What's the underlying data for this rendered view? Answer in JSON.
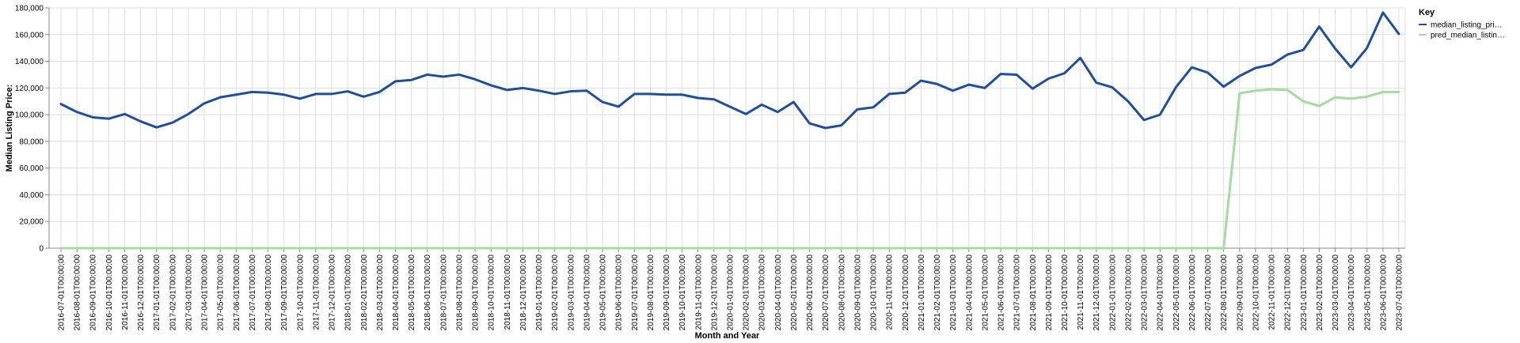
{
  "chart_data": {
    "type": "line",
    "xlabel": "Month and Year",
    "ylabel": "Median Listing Price:",
    "ylim": [
      0,
      180000
    ],
    "y_ticks": [
      "0",
      "20,000",
      "40,000",
      "60,000",
      "80,000",
      "100,000",
      "120,000",
      "140,000",
      "160,000",
      "180,000"
    ],
    "grid": true,
    "legend": {
      "title": "Key",
      "position": "top-right"
    },
    "x": [
      "2016-07-01T00:00:00",
      "2016-08-01T00:00:00",
      "2016-09-01T00:00:00",
      "2016-10-01T00:00:00",
      "2016-11-01T00:00:00",
      "2016-12-01T00:00:00",
      "2017-01-01T00:00:00",
      "2017-02-01T00:00:00",
      "2017-03-01T00:00:00",
      "2017-04-01T00:00:00",
      "2017-05-01T00:00:00",
      "2017-06-01T00:00:00",
      "2017-07-01T00:00:00",
      "2017-08-01T00:00:00",
      "2017-09-01T00:00:00",
      "2017-10-01T00:00:00",
      "2017-11-01T00:00:00",
      "2017-12-01T00:00:00",
      "2018-01-01T00:00:00",
      "2018-02-01T00:00:00",
      "2018-03-01T00:00:00",
      "2018-04-01T00:00:00",
      "2018-05-01T00:00:00",
      "2018-06-01T00:00:00",
      "2018-07-01T00:00:00",
      "2018-08-01T00:00:00",
      "2018-09-01T00:00:00",
      "2018-10-01T00:00:00",
      "2018-11-01T00:00:00",
      "2018-12-01T00:00:00",
      "2019-01-01T00:00:00",
      "2019-02-01T00:00:00",
      "2019-03-01T00:00:00",
      "2019-04-01T00:00:00",
      "2019-05-01T00:00:00",
      "2019-06-01T00:00:00",
      "2019-07-01T00:00:00",
      "2019-08-01T00:00:00",
      "2019-09-01T00:00:00",
      "2019-10-01T00:00:00",
      "2019-11-01T00:00:00",
      "2019-12-01T00:00:00",
      "2020-01-01T00:00:00",
      "2020-02-01T00:00:00",
      "2020-03-01T00:00:00",
      "2020-04-01T00:00:00",
      "2020-05-01T00:00:00",
      "2020-06-01T00:00:00",
      "2020-07-01T00:00:00",
      "2020-08-01T00:00:00",
      "2020-09-01T00:00:00",
      "2020-10-01T00:00:00",
      "2020-11-01T00:00:00",
      "2020-12-01T00:00:00",
      "2021-01-01T00:00:00",
      "2021-02-01T00:00:00",
      "2021-03-01T00:00:00",
      "2021-04-01T00:00:00",
      "2021-05-01T00:00:00",
      "2021-06-01T00:00:00",
      "2021-07-01T00:00:00",
      "2021-08-01T00:00:00",
      "2021-09-01T00:00:00",
      "2021-10-01T00:00:00",
      "2021-11-01T00:00:00",
      "2021-12-01T00:00:00",
      "2022-01-01T00:00:00",
      "2022-02-01T00:00:00",
      "2022-03-01T00:00:00",
      "2022-04-01T00:00:00",
      "2022-05-01T00:00:00",
      "2022-06-01T00:00:00",
      "2022-07-01T00:00:00",
      "2022-08-01T00:00:00",
      "2022-09-01T00:00:00",
      "2022-10-01T00:00:00",
      "2022-11-01T00:00:00",
      "2022-12-01T00:00:00",
      "2023-01-01T00:00:00",
      "2023-02-01T00:00:00",
      "2023-03-01T00:00:00",
      "2023-04-01T00:00:00",
      "2023-05-01T00:00:00",
      "2023-06-01T00:00:00",
      "2023-07-01T00:00:00"
    ],
    "series": [
      {
        "name": "median_listing_pri…",
        "color": "#1f4e9c",
        "values": [
          108000,
          102000,
          98000,
          97000,
          100500,
          95000,
          90500,
          94000,
          100500,
          108500,
          113000,
          115000,
          117000,
          116500,
          115000,
          112000,
          115500,
          115500,
          117500,
          113500,
          117000,
          125000,
          126000,
          130000,
          128500,
          130000,
          126500,
          122000,
          118500,
          120000,
          118000,
          115500,
          117500,
          118000,
          109500,
          106000,
          115500,
          115500,
          115000,
          115000,
          112500,
          111500,
          106000,
          100500,
          107500,
          102000,
          109500,
          93500,
          90000,
          92000,
          104000,
          105500,
          115500,
          116500,
          125500,
          123000,
          118000,
          122500,
          120000,
          130500,
          130000,
          119500,
          127000,
          131000,
          142500,
          124000,
          120500,
          110000,
          96000,
          100000,
          120500,
          135500,
          131500,
          121000,
          129000,
          135000,
          137500,
          145000,
          148500,
          166000,
          149500,
          135500,
          150000,
          176500,
          160500
        ]
      },
      {
        "name": "pred_median_listin…",
        "color": "#a3dc9e",
        "values": [
          0,
          0,
          0,
          0,
          0,
          0,
          0,
          0,
          0,
          0,
          0,
          0,
          0,
          0,
          0,
          0,
          0,
          0,
          0,
          0,
          0,
          0,
          0,
          0,
          0,
          0,
          0,
          0,
          0,
          0,
          0,
          0,
          0,
          0,
          0,
          0,
          0,
          0,
          0,
          0,
          0,
          0,
          0,
          0,
          0,
          0,
          0,
          0,
          0,
          0,
          0,
          0,
          0,
          0,
          0,
          0,
          0,
          0,
          0,
          0,
          0,
          0,
          0,
          0,
          0,
          0,
          0,
          0,
          0,
          0,
          0,
          0,
          0,
          0,
          116000,
          118000,
          119000,
          118500,
          110000,
          106500,
          113000,
          112000,
          113500,
          117000,
          117000
        ]
      }
    ]
  }
}
